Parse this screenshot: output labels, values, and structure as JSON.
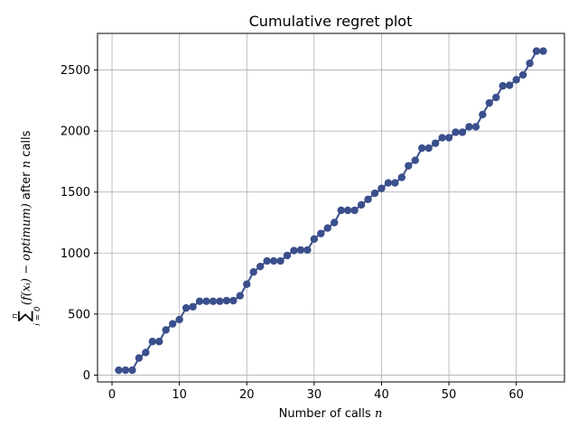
{
  "chart_data": {
    "type": "line",
    "title": "Cumulative regret plot",
    "xlabel": "Number of calls n",
    "ylabel": "Σ (f(x_i) − optimum) after n calls, i=0..n",
    "xlabel_parts": {
      "text": "Number of calls ",
      "italic": "n"
    },
    "ylabel_parts": {
      "sum_symbol": "∑",
      "sum_top": "n",
      "sum_bottom": "i = 0",
      "expression": "(f(xᵢ) − optimum)",
      "suffix": " after ",
      "italic": "n",
      "end": " calls"
    },
    "xlim": [
      -2.15,
      67.15
    ],
    "ylim": [
      -56,
      2800
    ],
    "xticks": [
      0,
      10,
      20,
      30,
      40,
      50,
      60
    ],
    "yticks": [
      0,
      500,
      1000,
      1500,
      2000,
      2500
    ],
    "grid": true,
    "color": "#3b4f8c",
    "x": [
      1,
      2,
      3,
      4,
      5,
      6,
      7,
      8,
      9,
      10,
      11,
      12,
      13,
      14,
      15,
      16,
      17,
      18,
      19,
      20,
      21,
      22,
      23,
      24,
      25,
      26,
      27,
      28,
      29,
      30,
      31,
      32,
      33,
      34,
      35,
      36,
      37,
      38,
      39,
      40,
      41,
      42,
      43,
      44,
      45,
      46,
      47,
      48,
      49,
      50,
      51,
      52,
      53,
      54,
      55,
      56,
      57,
      58,
      59,
      60,
      61,
      62,
      63,
      64
    ],
    "y": [
      40,
      40,
      40,
      140,
      185,
      275,
      275,
      370,
      420,
      455,
      550,
      560,
      605,
      605,
      605,
      605,
      610,
      610,
      650,
      745,
      845,
      890,
      935,
      935,
      935,
      980,
      1020,
      1025,
      1025,
      1115,
      1160,
      1205,
      1250,
      1350,
      1350,
      1350,
      1395,
      1440,
      1490,
      1530,
      1575,
      1575,
      1620,
      1715,
      1760,
      1860,
      1860,
      1900,
      1945,
      1945,
      1990,
      1990,
      2035,
      2035,
      2135,
      2230,
      2275,
      2370,
      2375,
      2420,
      2460,
      2555,
      2655,
      2655
    ]
  }
}
